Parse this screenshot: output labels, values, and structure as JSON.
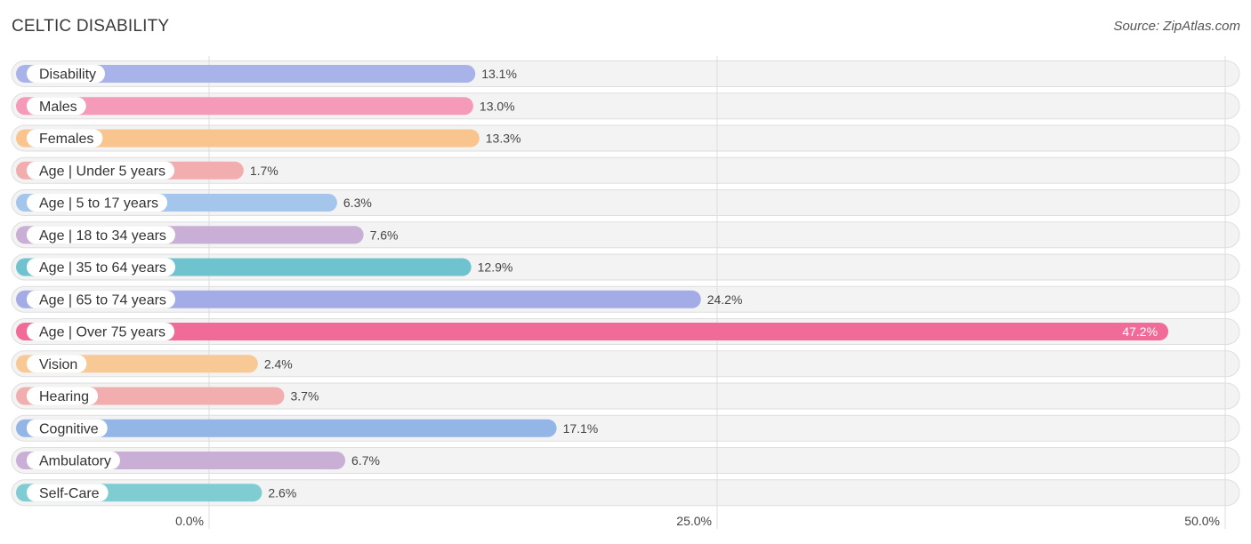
{
  "header": {
    "title": "CELTIC DISABILITY",
    "source": "Source: ZipAtlas.com"
  },
  "chart_data": {
    "type": "bar",
    "orientation": "horizontal",
    "title": "CELTIC DISABILITY",
    "categories": [
      "Disability",
      "Males",
      "Females",
      "Age | Under 5 years",
      "Age | 5 to 17 years",
      "Age | 18 to 34 years",
      "Age | 35 to 64 years",
      "Age | 65 to 74 years",
      "Age | Over 75 years",
      "Vision",
      "Hearing",
      "Cognitive",
      "Ambulatory",
      "Self-Care"
    ],
    "values": [
      13.1,
      13.0,
      13.3,
      1.7,
      6.3,
      7.6,
      12.9,
      24.2,
      47.2,
      2.4,
      3.7,
      17.1,
      6.7,
      2.6
    ],
    "value_labels": [
      "13.1%",
      "13.0%",
      "13.3%",
      "1.7%",
      "6.3%",
      "7.6%",
      "12.9%",
      "24.2%",
      "47.2%",
      "2.4%",
      "3.7%",
      "17.1%",
      "6.7%",
      "2.6%"
    ],
    "colors": [
      "#a8b3ea",
      "#f59ab8",
      "#f9c48e",
      "#f2aeae",
      "#a5c6ec",
      "#c9aed6",
      "#6ec3cf",
      "#a3ace6",
      "#f06b97",
      "#f9c995",
      "#f2aeae",
      "#94b6e6",
      "#c9aed6",
      "#7fccd3"
    ],
    "xlim": [
      0,
      50
    ],
    "ticks": [
      0,
      25,
      50
    ],
    "tick_labels": [
      "0.0%",
      "25.0%",
      "50.0%"
    ],
    "xlabel": "",
    "ylabel": "",
    "grid": true,
    "legend": "none"
  }
}
